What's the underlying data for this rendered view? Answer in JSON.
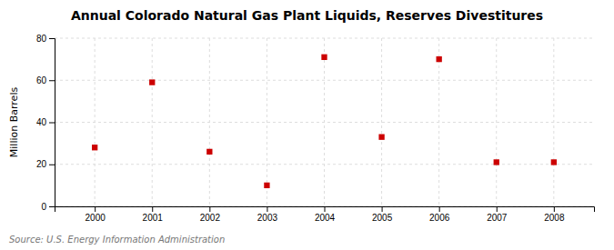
{
  "chart_data": {
    "type": "scatter",
    "title": "Annual Colorado Natural Gas Plant Liquids, Reserves Divestitures",
    "y_label": "Million Barrels",
    "annotations": [
      "Source: U.S. Energy Information Administration"
    ],
    "x": [
      2000,
      2001,
      2002,
      2003,
      2004,
      2005,
      2006,
      2007,
      2008
    ],
    "values": [
      28,
      59,
      26,
      10,
      71,
      33,
      70,
      21,
      21
    ],
    "xlim": [
      1999.3,
      2008.7
    ],
    "xticks": [
      2000,
      2001,
      2002,
      2003,
      2004,
      2005,
      2006,
      2007,
      2008
    ],
    "ylim": [
      0,
      80
    ],
    "yticks": [
      0,
      20,
      40,
      60,
      80
    ],
    "color": "#cc0000",
    "marker": "square",
    "grid": true
  }
}
